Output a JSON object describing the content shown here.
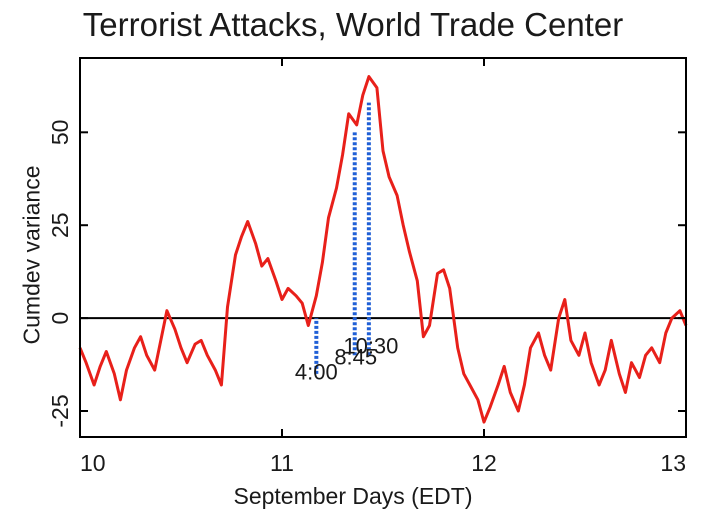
{
  "chart_data": {
    "type": "line",
    "title": "Terrorist Attacks, World Trade Center",
    "xlabel": "September Days (EDT)",
    "ylabel": "Cumdev variance",
    "xlim": [
      10,
      13
    ],
    "ylim": [
      -32,
      70
    ],
    "xticks": [
      10,
      11,
      12,
      13
    ],
    "xtick_labels": [
      "10",
      "11",
      "12",
      "13"
    ],
    "yticks": [
      -25,
      0,
      25,
      50
    ],
    "ytick_labels": [
      "-25",
      "0",
      "25",
      "50"
    ],
    "grid": false,
    "line_color": "#e8201a",
    "zero_line_color": "#000000",
    "marker_color": "#1f5fd6",
    "series": [
      {
        "x": [
          10.0,
          10.03,
          10.07,
          10.1,
          10.13,
          10.17,
          10.2,
          10.23,
          10.27,
          10.3,
          10.33,
          10.37,
          10.4,
          10.43,
          10.47,
          10.5,
          10.53,
          10.57,
          10.6,
          10.63,
          10.67,
          10.7,
          10.73,
          10.77,
          10.8,
          10.83,
          10.87,
          10.9,
          10.93,
          10.97,
          11.0,
          11.03,
          11.07,
          11.1,
          11.13,
          11.17,
          11.2,
          11.23,
          11.27,
          11.3,
          11.33,
          11.37,
          11.4,
          11.43,
          11.47,
          11.5,
          11.53,
          11.57,
          11.6,
          11.63,
          11.67,
          11.7,
          11.73,
          11.77,
          11.8,
          11.83,
          11.87,
          11.9,
          11.93,
          11.97,
          12.0,
          12.03,
          12.07,
          12.1,
          12.13,
          12.17,
          12.2,
          12.23,
          12.27,
          12.3,
          12.33,
          12.37,
          12.4,
          12.43,
          12.47,
          12.5,
          12.53,
          12.57,
          12.6,
          12.63,
          12.67,
          12.7,
          12.73,
          12.77,
          12.8,
          12.83,
          12.87,
          12.9,
          12.93,
          12.97,
          13.0
        ],
        "y": [
          -8,
          -12,
          -18,
          -13,
          -9,
          -15,
          -22,
          -14,
          -8,
          -5,
          -10,
          -14,
          -6,
          2,
          -3,
          -8,
          -12,
          -7,
          -6,
          -10,
          -14,
          -18,
          3,
          17,
          22,
          26,
          20,
          14,
          16,
          10,
          5,
          8,
          6,
          4,
          -2,
          6,
          15,
          27,
          35,
          44,
          55,
          52,
          60,
          65,
          62,
          45,
          38,
          33,
          25,
          18,
          10,
          -5,
          -2,
          12,
          13,
          8,
          -8,
          -15,
          -18,
          -22,
          -28,
          -24,
          -18,
          -13,
          -20,
          -25,
          -18,
          -8,
          -4,
          -10,
          -14,
          0,
          5,
          -6,
          -10,
          -4,
          -12,
          -18,
          -14,
          -6,
          -15,
          -20,
          -12,
          -16,
          -10,
          -8,
          -12,
          -4,
          0,
          2,
          -2
        ]
      }
    ],
    "annotations": [
      {
        "label": "4:00",
        "x": 11.17,
        "y": -9
      },
      {
        "label": "8:45",
        "x": 11.365,
        "y": -5
      },
      {
        "label": "10:30",
        "x": 11.44,
        "y": -2
      }
    ],
    "event_markers": [
      {
        "x": 11.17,
        "y_from": -15,
        "y_to": 0
      },
      {
        "x": 11.36,
        "y_from": -10,
        "y_to": 50
      },
      {
        "x": 11.43,
        "y_from": -10,
        "y_to": 58
      }
    ]
  }
}
